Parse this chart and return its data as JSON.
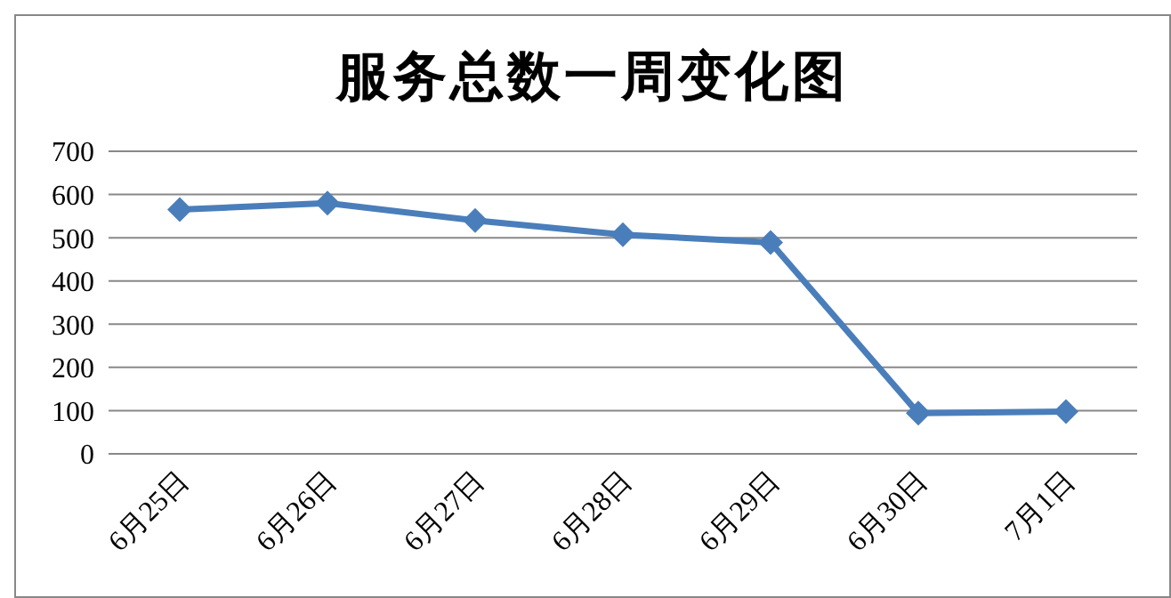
{
  "chart_data": {
    "type": "line",
    "title": "服务总数一周变化图",
    "categories": [
      "6月25日",
      "6月26日",
      "6月27日",
      "6月28日",
      "6月29日",
      "6月30日",
      "7月1日"
    ],
    "series": [
      {
        "color": "#4a7ebb",
        "values": [
          565,
          580,
          540,
          507,
          489,
          94,
          98
        ]
      }
    ],
    "ylim": [
      0,
      700
    ],
    "yticks": [
      0,
      100,
      200,
      300,
      400,
      500,
      600,
      700
    ],
    "grid": "y",
    "legend": false,
    "marker": "diamond",
    "line_style": "solid"
  }
}
